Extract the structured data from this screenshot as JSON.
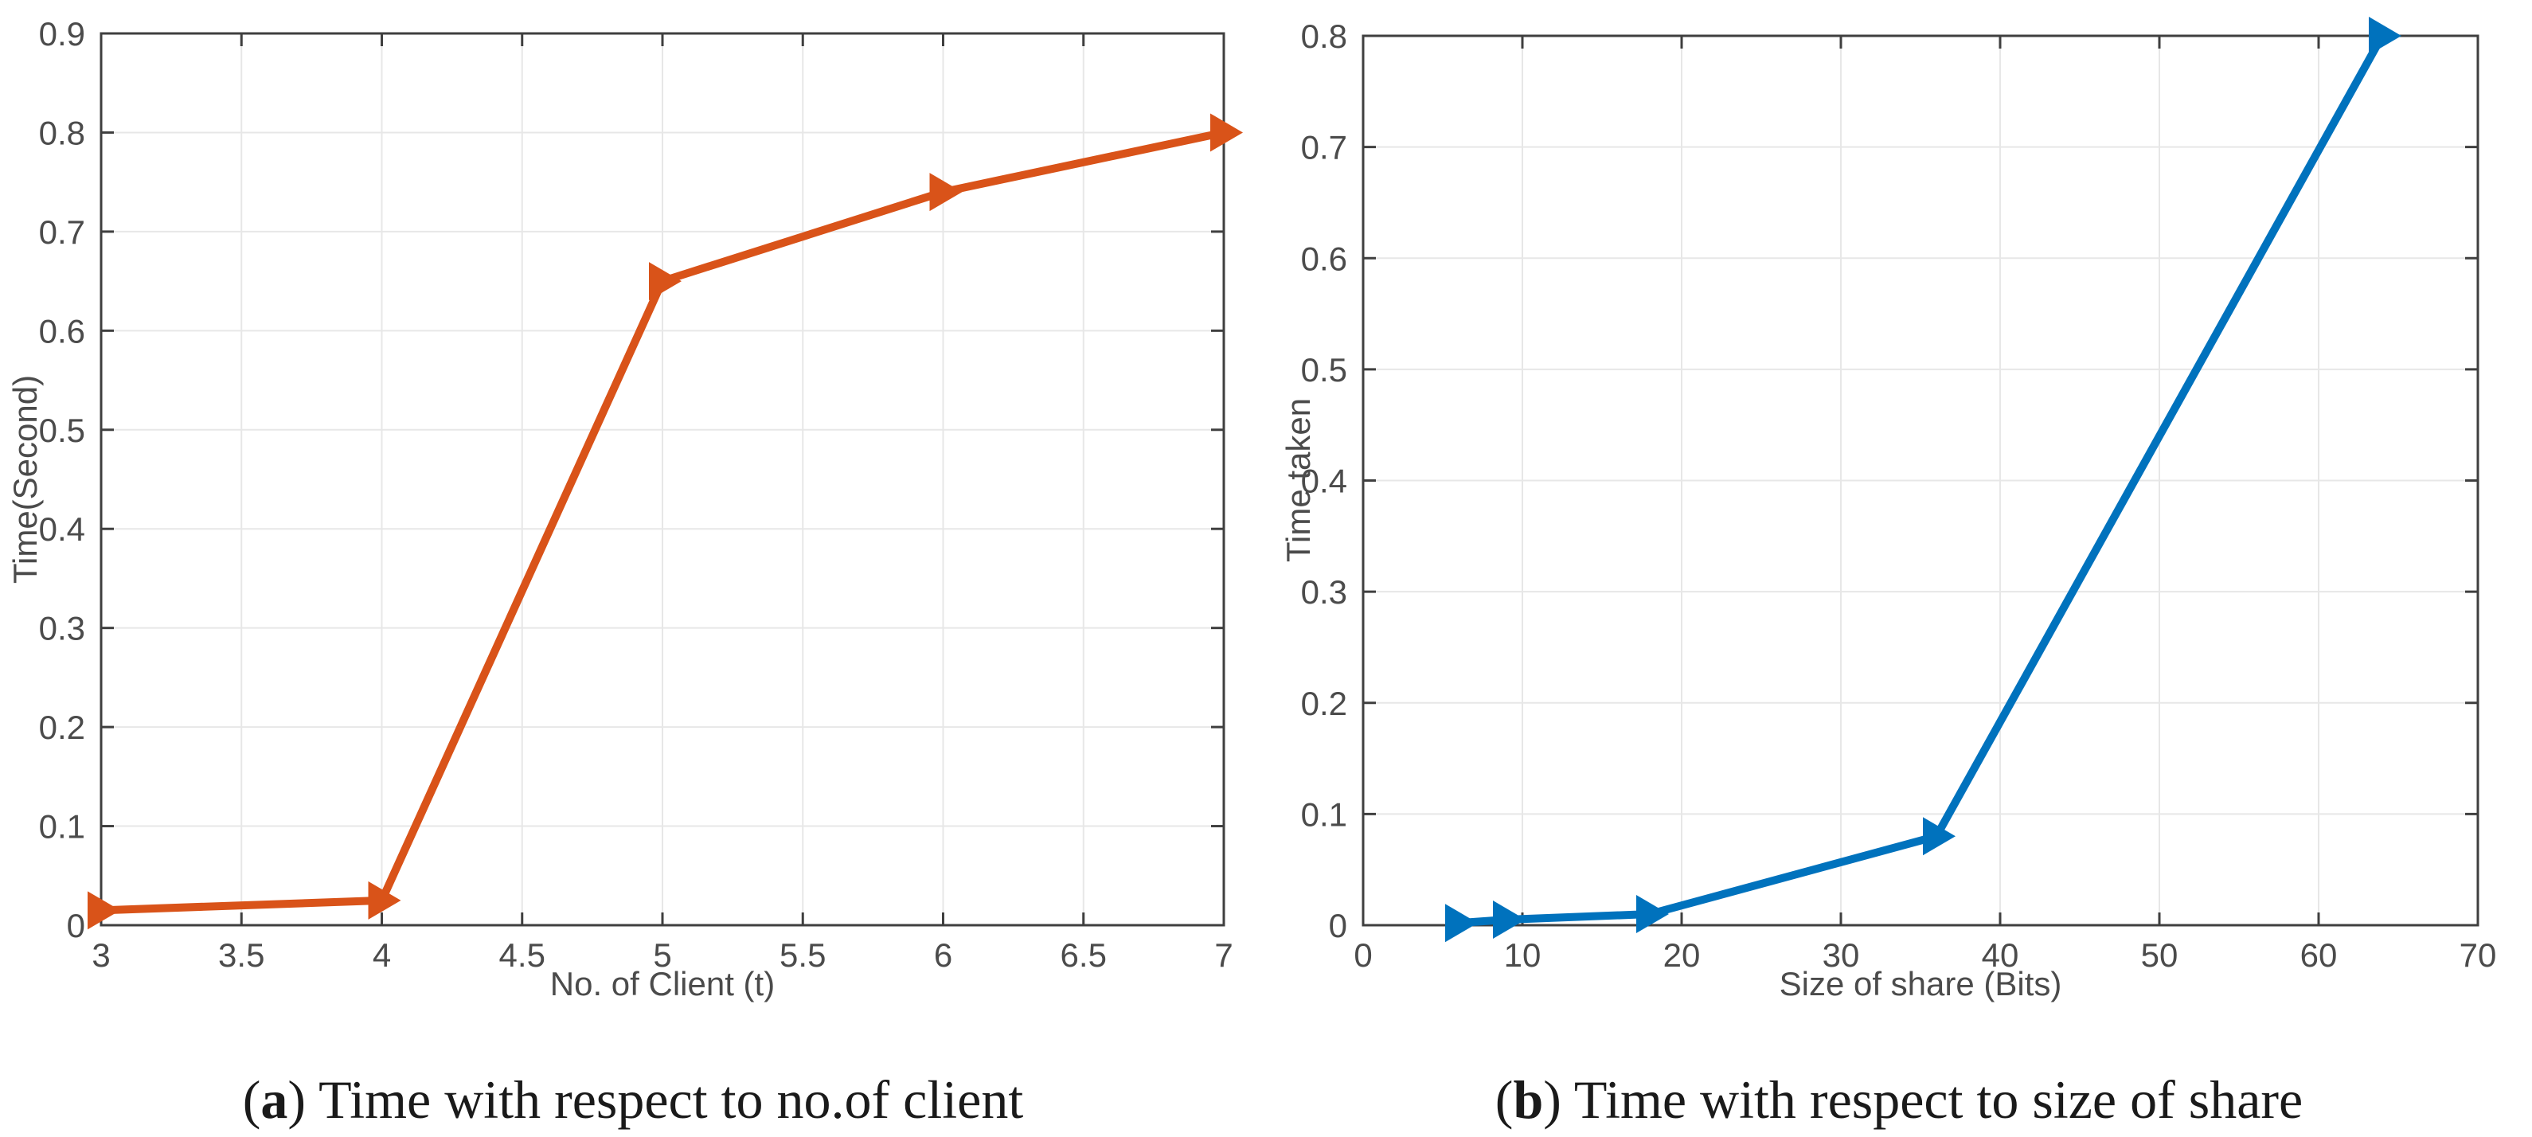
{
  "figure": {
    "background_color": "#ffffff",
    "colors": {
      "axis": "#3f3f3f",
      "grid": "#e7e7e7",
      "tick_label": "#4b4b4b",
      "caption_text": "#1a1a1a",
      "series_a": "#D95319",
      "series_b": "#0072BD"
    }
  },
  "chart_data": [
    {
      "type": "line",
      "panel": "a",
      "caption_open": "(",
      "caption_label": "a",
      "caption_close": ")",
      "caption_text": "Time with respect to no.of client",
      "xlabel": "No. of Client (t)",
      "ylabel": "Time(Second)",
      "x": [
        3,
        4,
        5,
        6,
        7
      ],
      "y": [
        0.015,
        0.025,
        0.65,
        0.74,
        0.8
      ],
      "xlim": [
        3,
        7
      ],
      "ylim": [
        0,
        0.9
      ],
      "xticks": [
        3,
        3.5,
        4,
        4.5,
        5,
        5.5,
        6,
        6.5,
        7
      ],
      "yticks": [
        0,
        0.1,
        0.2,
        0.3,
        0.4,
        0.5,
        0.6,
        0.7,
        0.8,
        0.9
      ],
      "grid": true,
      "legend": "none",
      "line_color": "#D95319",
      "marker": "right-triangle"
    },
    {
      "type": "line",
      "panel": "b",
      "caption_open": "(",
      "caption_label": "b",
      "caption_close": ")",
      "caption_text": "Time with respect to size of share",
      "xlabel": "Size of share (Bits)",
      "ylabel": "Time taken",
      "x": [
        6,
        9,
        18,
        36,
        64
      ],
      "y": [
        0.002,
        0.005,
        0.01,
        0.08,
        0.8
      ],
      "xlim": [
        0,
        70
      ],
      "ylim": [
        0,
        0.8
      ],
      "xticks": [
        0,
        10,
        20,
        30,
        40,
        50,
        60,
        70
      ],
      "yticks": [
        0,
        0.1,
        0.2,
        0.3,
        0.4,
        0.5,
        0.6,
        0.7,
        0.8
      ],
      "grid": true,
      "legend": "none",
      "line_color": "#0072BD",
      "marker": "right-triangle"
    }
  ]
}
